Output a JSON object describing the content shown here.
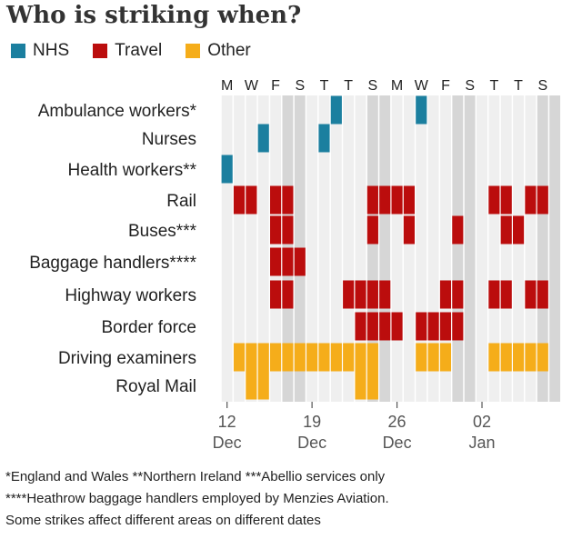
{
  "chart_data": {
    "type": "heatmap",
    "title": "Who is striking when?",
    "legend": [
      {
        "name": "NHS",
        "color": "#1b7f9f"
      },
      {
        "name": "Travel",
        "color": "#bb0d0d"
      },
      {
        "name": "Other",
        "color": "#f5ad1a"
      }
    ],
    "legend_position": "top-left",
    "day_labels": [
      "M",
      "T",
      "W",
      "T",
      "F",
      "S",
      "S",
      "M",
      "T",
      "W",
      "T",
      "F",
      "S",
      "S",
      "M",
      "T",
      "W",
      "T",
      "F",
      "S",
      "S",
      "M",
      "T",
      "W",
      "T",
      "F",
      "S",
      "S"
    ],
    "day_label_every": 2,
    "weekend_columns": [
      5,
      6,
      12,
      13,
      19,
      20,
      26,
      27
    ],
    "weekday_cell_color": "#efefef",
    "weekend_cell_color": "#d6d6d6",
    "x_ticks": [
      {
        "index": 0,
        "day": "12",
        "month": "Dec"
      },
      {
        "index": 7,
        "day": "19",
        "month": "Dec"
      },
      {
        "index": 14,
        "day": "26",
        "month": "Dec"
      },
      {
        "index": 21,
        "day": "02",
        "month": "Jan"
      }
    ],
    "rows": [
      {
        "name": "Ambulance workers*",
        "category": "NHS",
        "strike_days": [
          9,
          16
        ]
      },
      {
        "name": "Nurses",
        "category": "NHS",
        "strike_days": [
          3,
          8
        ]
      },
      {
        "name": "Health workers**",
        "category": "NHS",
        "strike_days": [
          0
        ]
      },
      {
        "name": "Rail",
        "category": "Travel",
        "strike_days": [
          1,
          2,
          4,
          5,
          12,
          13,
          14,
          15,
          22,
          23,
          25,
          26
        ]
      },
      {
        "name": "Buses***",
        "category": "Travel",
        "strike_days": [
          4,
          5,
          12,
          15,
          19,
          23,
          24
        ]
      },
      {
        "name": "Baggage handlers****",
        "category": "Travel",
        "strike_days": [
          4,
          5,
          6
        ]
      },
      {
        "name": "Highway workers",
        "category": "Travel",
        "strike_days": [
          4,
          5,
          10,
          11,
          12,
          13,
          18,
          19,
          22,
          23,
          25,
          26
        ]
      },
      {
        "name": "Border force",
        "category": "Travel",
        "strike_days": [
          11,
          12,
          13,
          14,
          16,
          17,
          18,
          19
        ]
      },
      {
        "name": "Driving examiners",
        "category": "Other",
        "strike_days": [
          1,
          2,
          3,
          4,
          5,
          6,
          7,
          8,
          9,
          10,
          11,
          12,
          16,
          17,
          18,
          22,
          23,
          24,
          25,
          26
        ]
      },
      {
        "name": "Royal Mail",
        "category": "Other",
        "strike_days": [
          2,
          3,
          11,
          12
        ]
      }
    ]
  },
  "footnotes": [
    "*England and Wales  **Northern Ireland  ***Abellio services only",
    "****Heathrow baggage handlers employed by Menzies Aviation.",
    "Some strikes affect different areas on different dates"
  ]
}
